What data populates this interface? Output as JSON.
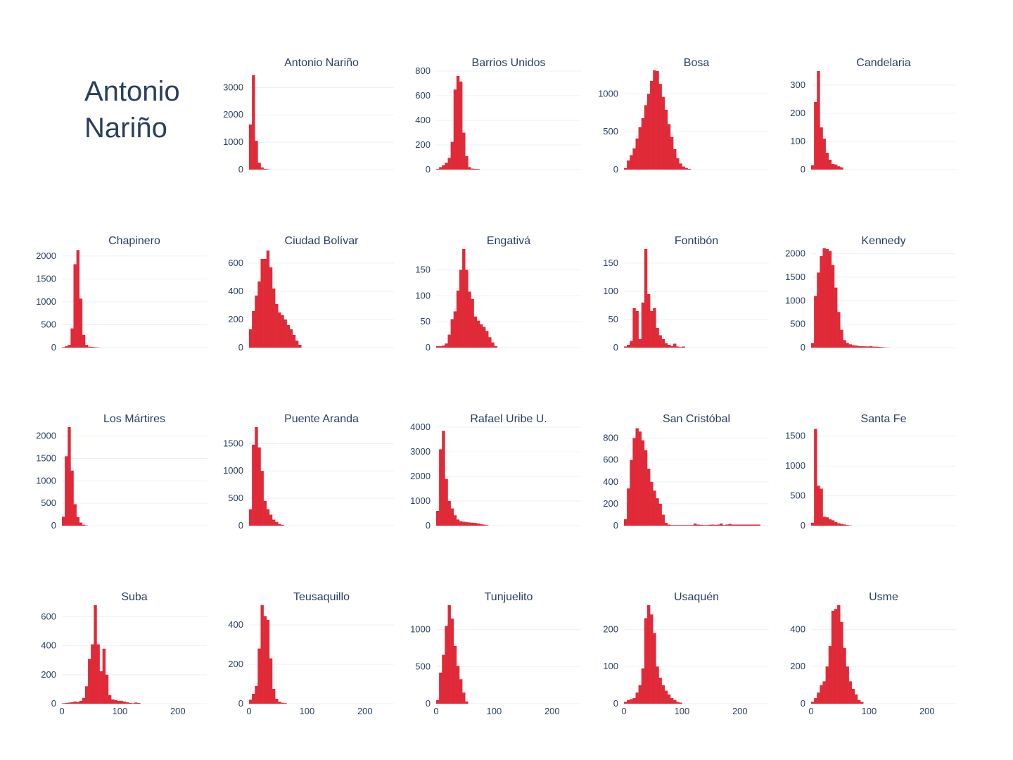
{
  "page": {
    "selected_title": "Antonio\nNariño"
  },
  "colors": {
    "bar": "#e02a38",
    "grid": "#ebf0f8",
    "text": "#2a3f5f"
  },
  "chart_data": {
    "type": "bar",
    "description_of_axes": "histograms of a shared numeric variable per locality",
    "xlim": [
      0,
      250
    ],
    "x_ticks": [
      0,
      100,
      200
    ],
    "bin_width": 5,
    "grid": true,
    "panels": [
      {
        "name": "Antonio Nariño",
        "ylim": [
          0,
          3600
        ],
        "y_ticks": [
          0,
          1000,
          2000,
          3000
        ],
        "bins_start": 0,
        "values": [
          1650,
          3450,
          1050,
          250,
          80,
          30,
          15
        ]
      },
      {
        "name": "Barrios Unidos",
        "ylim": [
          0,
          800
        ],
        "y_ticks": [
          0,
          200,
          400,
          600,
          800
        ],
        "bins_start": 0,
        "values": [
          5,
          20,
          35,
          55,
          95,
          225,
          650,
          760,
          715,
          300,
          110,
          20,
          8,
          6,
          5
        ]
      },
      {
        "name": "Bosa",
        "ylim": [
          0,
          1300
        ],
        "y_ticks": [
          0,
          500,
          1000
        ],
        "bins_start": 0,
        "values": [
          20,
          120,
          190,
          280,
          410,
          560,
          680,
          850,
          1000,
          1170,
          1310,
          1300,
          1130,
          960,
          790,
          600,
          430,
          270,
          150,
          80,
          40,
          20,
          10
        ]
      },
      {
        "name": "Candelaria",
        "ylim": [
          0,
          350
        ],
        "y_ticks": [
          0,
          100,
          200,
          300
        ],
        "bins_start": 0,
        "values": [
          15,
          240,
          350,
          150,
          110,
          60,
          35,
          20,
          18,
          12,
          8
        ]
      },
      {
        "name": "Chapinero",
        "ylim": [
          0,
          2150
        ],
        "y_ticks": [
          0,
          500,
          1000,
          1500,
          2000
        ],
        "bins_start": 0,
        "values": [
          10,
          30,
          60,
          420,
          1820,
          2130,
          1070,
          280,
          60,
          20,
          15,
          10,
          5
        ]
      },
      {
        "name": "Ciudad Bolívar",
        "ylim": [
          0,
          700
        ],
        "y_ticks": [
          0,
          200,
          400,
          600
        ],
        "bins_start": 0,
        "values": [
          130,
          260,
          370,
          470,
          630,
          630,
          690,
          570,
          420,
          310,
          250,
          230,
          200,
          160,
          130,
          90,
          50,
          20
        ]
      },
      {
        "name": "Engativá",
        "ylim": [
          0,
          190
        ],
        "y_ticks": [
          0,
          50,
          100,
          150
        ],
        "bins_start": 0,
        "values": [
          3,
          3,
          4,
          8,
          25,
          55,
          70,
          110,
          150,
          190,
          150,
          108,
          94,
          60,
          52,
          45,
          40,
          32,
          20,
          10,
          3
        ]
      },
      {
        "name": "Fontibón",
        "ylim": [
          0,
          175
        ],
        "y_ticks": [
          0,
          50,
          100,
          150
        ],
        "bins_start": 0,
        "values": [
          2,
          5,
          12,
          70,
          65,
          15,
          80,
          175,
          95,
          65,
          70,
          35,
          22,
          15,
          8,
          5,
          3,
          7,
          2,
          1,
          2
        ]
      },
      {
        "name": "Kennedy",
        "ylim": [
          0,
          2100
        ],
        "y_ticks": [
          0,
          500,
          1000,
          1500,
          2000
        ],
        "bins_start": 0,
        "values": [
          100,
          1100,
          1600,
          1950,
          2120,
          2100,
          2060,
          1760,
          1280,
          760,
          380,
          160,
          100,
          70,
          50,
          45,
          35,
          30,
          28,
          25,
          30,
          22,
          20,
          15,
          10,
          5,
          3
        ]
      },
      {
        "name": "Los Mártires",
        "ylim": [
          0,
          2200
        ],
        "y_ticks": [
          0,
          500,
          1000,
          1500,
          2000
        ],
        "bins_start": 0,
        "values": [
          200,
          1550,
          2200,
          1230,
          480,
          190,
          70,
          20,
          5
        ]
      },
      {
        "name": "Puente Aranda",
        "ylim": [
          0,
          1800
        ],
        "y_ticks": [
          0,
          500,
          1000,
          1500
        ],
        "bins_start": 0,
        "values": [
          300,
          1480,
          1800,
          1430,
          1000,
          450,
          300,
          200,
          110,
          70,
          30,
          15
        ]
      },
      {
        "name": "Rafael Uribe U.",
        "ylim": [
          0,
          4000
        ],
        "y_ticks": [
          0,
          1000,
          2000,
          3000,
          4000
        ],
        "bins_start": 0,
        "values": [
          600,
          3100,
          3850,
          1900,
          1000,
          700,
          420,
          250,
          180,
          160,
          140,
          130,
          120,
          110,
          90,
          60,
          40,
          20
        ]
      },
      {
        "name": "San Cristóbal",
        "ylim": [
          0,
          900
        ],
        "y_ticks": [
          0,
          200,
          400,
          600,
          800
        ],
        "bins_start": 0,
        "values": [
          60,
          340,
          600,
          800,
          890,
          860,
          780,
          690,
          520,
          400,
          320,
          250,
          200,
          100,
          25,
          10,
          5,
          5,
          5,
          5,
          5,
          5,
          5,
          5,
          20,
          10,
          8,
          5,
          5,
          8,
          10,
          8,
          10,
          20,
          5,
          10,
          15,
          10,
          10,
          10,
          10,
          10,
          10,
          10,
          10,
          10,
          10
        ]
      },
      {
        "name": "Santa Fe",
        "ylim": [
          0,
          1650
        ],
        "y_ticks": [
          0,
          500,
          1000,
          1500
        ],
        "bins_start": 0,
        "values": [
          50,
          1620,
          670,
          620,
          150,
          140,
          110,
          90,
          60,
          40,
          30,
          20,
          10,
          5
        ]
      },
      {
        "name": "Suba",
        "ylim": [
          0,
          680
        ],
        "y_ticks": [
          0,
          200,
          400,
          600
        ],
        "bins_start": 0,
        "values": [
          3,
          5,
          8,
          10,
          15,
          12,
          20,
          40,
          120,
          310,
          410,
          680,
          410,
          225,
          380,
          200,
          60,
          30,
          25,
          20,
          20,
          15,
          10,
          5,
          3,
          8,
          5
        ]
      },
      {
        "name": "Teusaquillo",
        "ylim": [
          0,
          500
        ],
        "y_ticks": [
          0,
          200,
          400
        ],
        "bins_start": 0,
        "values": [
          20,
          50,
          90,
          280,
          500,
          445,
          425,
          230,
          75,
          25,
          10,
          5,
          3
        ]
      },
      {
        "name": "Tunjuelito",
        "ylim": [
          0,
          1330
        ],
        "y_ticks": [
          0,
          500,
          1000
        ],
        "bins_start": 0,
        "values": [
          50,
          420,
          660,
          1050,
          1330,
          1150,
          780,
          510,
          330,
          150,
          30
        ]
      },
      {
        "name": "Usaquén",
        "ylim": [
          0,
          265
        ],
        "y_ticks": [
          0,
          100,
          200
        ],
        "bins_start": 0,
        "values": [
          5,
          10,
          12,
          15,
          30,
          50,
          95,
          230,
          265,
          240,
          190,
          100,
          70,
          50,
          35,
          25,
          15,
          10,
          5,
          3
        ]
      },
      {
        "name": "Usme",
        "ylim": [
          0,
          530
        ],
        "y_ticks": [
          0,
          200,
          400
        ],
        "bins_start": 0,
        "values": [
          10,
          30,
          60,
          100,
          120,
          200,
          310,
          500,
          510,
          530,
          440,
          300,
          200,
          120,
          80,
          50,
          20,
          10
        ]
      }
    ]
  }
}
